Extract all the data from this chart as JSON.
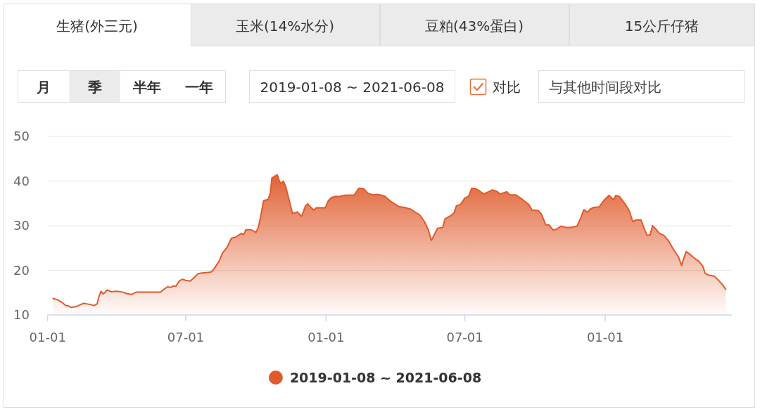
{
  "chart_data": {
    "type": "area",
    "title": "生猪(外三元)",
    "annotations": [
      "玉米(14%水分)",
      "豆粕(43%蛋白)",
      "15公斤仔猪",
      "月",
      "季",
      "半年",
      "一年",
      "2019-01-08 ~ 2021-06-08",
      "对比",
      "与其他时间段对比"
    ],
    "x": [
      "2019-01-08",
      "2019-01-14",
      "2019-01-20",
      "2019-01-25",
      "2019-01-28",
      "2019-01-31",
      "2019-02-06",
      "2019-02-09",
      "2019-02-13",
      "2019-02-17",
      "2019-02-21",
      "2019-02-27",
      "2019-03-03",
      "2019-03-07",
      "2019-03-09",
      "2019-03-12",
      "2019-03-15",
      "2019-03-20",
      "2019-03-25",
      "2019-04-02",
      "2019-04-10",
      "2019-04-14",
      "2019-04-21",
      "2019-04-27",
      "2019-05-12",
      "2019-05-29",
      "2019-06-02",
      "2019-06-07",
      "2019-06-12",
      "2019-06-15",
      "2019-06-18",
      "2019-06-23",
      "2019-06-27",
      "2019-07-02",
      "2019-07-07",
      "2019-07-12",
      "2019-07-17",
      "2019-07-22",
      "2019-07-28",
      "2019-08-03",
      "2019-08-07",
      "2019-08-14",
      "2019-08-18",
      "2019-08-24",
      "2019-08-30",
      "2019-09-04",
      "2019-09-12",
      "2019-09-15",
      "2019-09-18",
      "2019-09-24",
      "2019-09-26",
      "2019-10-01",
      "2019-10-04",
      "2019-10-07",
      "2019-10-11",
      "2019-10-17",
      "2019-10-20",
      "2019-10-22",
      "2019-10-25",
      "2019-10-29",
      "2019-11-01",
      "2019-11-03",
      "2019-11-06",
      "2019-11-09",
      "2019-11-13",
      "2019-11-18",
      "2019-11-24",
      "2019-11-30",
      "2019-12-05",
      "2019-12-08",
      "2019-12-12",
      "2019-12-16",
      "2019-12-19",
      "2019-12-31",
      "2020-01-04",
      "2020-01-08",
      "2020-01-14",
      "2020-01-17",
      "2020-01-25",
      "2020-02-07",
      "2020-02-13",
      "2020-02-19",
      "2020-02-25",
      "2020-03-02",
      "2020-03-09",
      "2020-03-18",
      "2020-03-26",
      "2020-04-05",
      "2020-04-15",
      "2020-04-21",
      "2020-04-29",
      "2020-05-03",
      "2020-05-09",
      "2020-05-14",
      "2020-05-18",
      "2020-05-22",
      "2020-05-26",
      "2020-06-02",
      "2020-06-05",
      "2020-06-13",
      "2020-06-17",
      "2020-06-20",
      "2020-06-25",
      "2020-07-01",
      "2020-07-06",
      "2020-07-10",
      "2020-07-15",
      "2020-07-20",
      "2020-07-26",
      "2020-08-06",
      "2020-08-12",
      "2020-08-16",
      "2020-08-25",
      "2020-08-29",
      "2020-09-06",
      "2020-09-15",
      "2020-09-23",
      "2020-09-27",
      "2020-10-05",
      "2020-10-09",
      "2020-10-15",
      "2020-10-19",
      "2020-10-25",
      "2020-10-30",
      "2020-11-04",
      "2020-11-10",
      "2020-11-17",
      "2020-11-25",
      "2020-11-30",
      "2020-12-04",
      "2020-12-09",
      "2020-12-12",
      "2020-12-17",
      "2020-12-24",
      "2020-12-31",
      "2021-01-06",
      "2021-01-12",
      "2021-01-15",
      "2021-01-20",
      "2021-01-26",
      "2021-01-30",
      "2021-02-02",
      "2021-02-06",
      "2021-02-11",
      "2021-02-17",
      "2021-02-21",
      "2021-02-25",
      "2021-03-01",
      "2021-03-04",
      "2021-03-07",
      "2021-03-13",
      "2021-03-19",
      "2021-03-25",
      "2021-03-31",
      "2021-04-07",
      "2021-04-11",
      "2021-04-17",
      "2021-04-22",
      "2021-04-28",
      "2021-05-04",
      "2021-05-09",
      "2021-05-12",
      "2021-05-17",
      "2021-05-24",
      "2021-05-30",
      "2021-06-05",
      "2021-06-08"
    ],
    "series": [
      {
        "name": "2019-01-08 ~ 2021-06-08",
        "color": "#e05a2b",
        "values": [
          13.7,
          13.4,
          12.8,
          12.1,
          12.1,
          11.7,
          11.8,
          12.0,
          12.3,
          12.6,
          12.5,
          12.3,
          12.1,
          12.5,
          14.0,
          15.3,
          14.7,
          15.6,
          15.2,
          15.3,
          15.1,
          14.8,
          14.6,
          15.1,
          15.1,
          15.1,
          15.7,
          16.3,
          16.2,
          16.5,
          16.4,
          17.7,
          18.0,
          17.7,
          17.6,
          18.4,
          19.2,
          19.4,
          19.5,
          19.6,
          20.3,
          22.1,
          23.8,
          25.1,
          27.2,
          27.4,
          28.3,
          28.0,
          29.1,
          29.1,
          29.0,
          28.5,
          29.5,
          31.8,
          35.6,
          35.9,
          37.3,
          40.7,
          41.0,
          41.4,
          39.9,
          39.4,
          40.0,
          38.8,
          36.2,
          32.7,
          33.1,
          32.1,
          34.4,
          34.9,
          34.1,
          33.5,
          34.0,
          34.0,
          35.6,
          36.3,
          36.6,
          36.5,
          36.8,
          36.9,
          38.4,
          38.3,
          37.3,
          36.9,
          37.0,
          36.6,
          35.4,
          34.3,
          34.0,
          33.7,
          32.8,
          32.4,
          30.9,
          29.1,
          26.7,
          28.0,
          29.4,
          29.6,
          31.5,
          32.3,
          32.9,
          34.5,
          34.7,
          36.2,
          36.6,
          38.4,
          38.3,
          37.8,
          37.1,
          38.0,
          37.7,
          37.1,
          37.6,
          36.9,
          36.9,
          35.8,
          34.7,
          33.5,
          33.4,
          32.7,
          30.2,
          30.2,
          29.0,
          29.3,
          29.9,
          29.6,
          29.6,
          29.9,
          31.8,
          33.6,
          33.0,
          33.7,
          34.1,
          34.2,
          35.8,
          36.8,
          35.8,
          36.8,
          36.5,
          35.1,
          34.1,
          33.1,
          30.9,
          31.3,
          31.3,
          29.4,
          27.8,
          28.0,
          30.0,
          29.5,
          28.3,
          27.8,
          26.6,
          24.8,
          23.0,
          21.1,
          24.2,
          23.6,
          22.7,
          22.0,
          20.9,
          19.3,
          18.9,
          18.7,
          17.7,
          16.5,
          15.7
        ]
      }
    ],
    "xlim": [
      "2019-01-01",
      "2021-06-16"
    ],
    "xticks": [
      {
        "value": "2019-01-01",
        "label": "01-01"
      },
      {
        "value": "2019-07-01",
        "label": "07-01"
      },
      {
        "value": "2020-01-01",
        "label": "01-01"
      },
      {
        "value": "2020-07-01",
        "label": "07-01"
      },
      {
        "value": "2021-01-01",
        "label": "01-01"
      }
    ],
    "ylim": [
      10,
      50
    ],
    "yticks": [
      10,
      20,
      30,
      40,
      50
    ],
    "grid": "y",
    "legend": "bottom"
  }
}
